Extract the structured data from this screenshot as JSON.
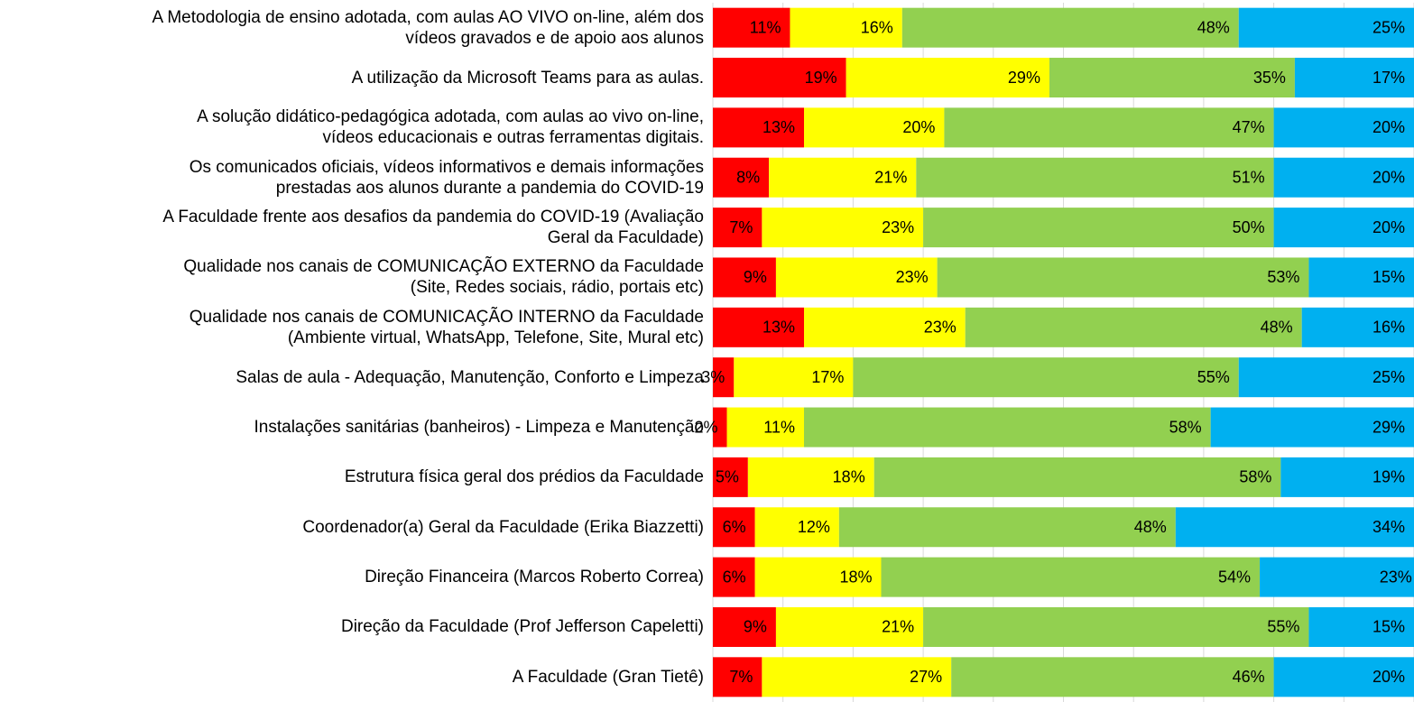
{
  "chart_data": {
    "type": "stacked_bar_horizontal",
    "categories": [
      "A Metodologia de ensino adotada, com aulas AO VIVO on-line, além dos\nvídeos gravados e de apoio aos alunos",
      "A utilização da Microsoft Teams para as aulas.",
      "A solução didático-pedagógica adotada, com aulas ao vivo on-line,\nvídeos educacionais e outras ferramentas digitais.",
      "Os comunicados oficiais, vídeos informativos e demais informações\nprestadas aos alunos durante a pandemia do COVID-19",
      "A Faculdade frente aos desafios da pandemia do COVID-19 (Avaliação\nGeral da Faculdade)",
      "Qualidade nos canais de COMUNICAÇÃO EXTERNO da Faculdade\n(Site, Redes sociais, rádio, portais etc)",
      "Qualidade nos canais de COMUNICAÇÃO INTERNO da Faculdade\n(Ambiente virtual, WhatsApp, Telefone, Site, Mural etc)",
      "Salas de aula - Adequação, Manutenção, Conforto e Limpeza",
      "Instalações sanitárias (banheiros) - Limpeza e Manutenção",
      "Estrutura física geral dos prédios da Faculdade",
      "Coordenador(a) Geral da Faculdade (Erika Biazzetti)",
      "Direção Financeira (Marcos Roberto Correa)",
      "Direção da Faculdade (Prof Jefferson Capeletti)",
      "A Faculdade (Gran Tietê)"
    ],
    "series": [
      {
        "color": "#ff0000",
        "values": [
          11,
          19,
          13,
          8,
          7,
          9,
          13,
          3,
          2,
          5,
          6,
          6,
          9,
          7
        ],
        "value_labels": [
          "11%",
          "19%",
          "13%",
          "8%",
          "7%",
          "9%",
          "13%",
          "3%",
          "2%",
          "5%",
          "6%",
          "6%",
          "9%",
          "7%"
        ]
      },
      {
        "color": "#ffff00",
        "values": [
          16,
          29,
          20,
          21,
          23,
          23,
          23,
          17,
          11,
          18,
          12,
          18,
          21,
          27
        ],
        "value_labels": [
          "16%",
          "29%",
          "20%",
          "21%",
          "23%",
          "23%",
          "23%",
          "17%",
          "11%",
          "18%",
          "12%",
          "18%",
          "21%",
          "27%"
        ]
      },
      {
        "color": "#92d050",
        "values": [
          48,
          35,
          47,
          51,
          50,
          53,
          48,
          55,
          58,
          58,
          48,
          54,
          55,
          46
        ],
        "value_labels": [
          "48%",
          "35%",
          "47%",
          "51%",
          "50%",
          "53%",
          "48%",
          "55%",
          "58%",
          "58%",
          "48%",
          "54%",
          "55%",
          "46%"
        ]
      },
      {
        "color": "#00b0f0",
        "values": [
          25,
          17,
          20,
          20,
          20,
          15,
          16,
          25,
          29,
          19,
          34,
          23,
          15,
          20
        ],
        "value_labels": [
          "25%",
          "17%",
          "20%",
          "20%",
          "20%",
          "15%",
          "16%",
          "25%",
          "29%",
          "19%",
          "34%",
          "23%",
          "15%",
          "20%"
        ]
      }
    ],
    "xlim": [
      0,
      100
    ],
    "xticks": [
      0,
      10,
      20,
      30,
      40,
      50,
      60,
      70,
      80,
      90,
      100
    ],
    "grid": true
  }
}
